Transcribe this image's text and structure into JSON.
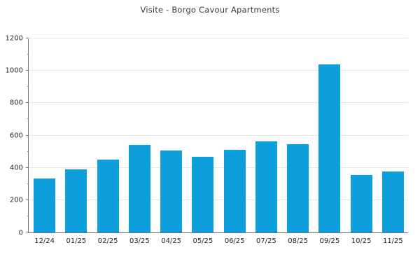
{
  "title": "Visite - Borgo Cavour Apartments",
  "colors": {
    "bar": "#0c9fdb",
    "grid": "#e6e6e6",
    "axis": "#757575",
    "title_text": "#3a3a3a",
    "tick_text": "#262626",
    "background": "#ffffff"
  },
  "chart_data": {
    "type": "bar",
    "title": "Visite - Borgo Cavour Apartments",
    "categories": [
      "12/24",
      "01/25",
      "02/25",
      "03/25",
      "04/25",
      "05/25",
      "06/25",
      "07/25",
      "08/25",
      "09/25",
      "10/25",
      "11/25"
    ],
    "values": [
      335,
      390,
      450,
      540,
      505,
      470,
      510,
      565,
      545,
      1040,
      355,
      375
    ],
    "xlabel": "",
    "ylabel": "",
    "ylim": [
      0,
      1200
    ],
    "yticks": [
      0,
      200,
      400,
      600,
      800,
      1000,
      1200
    ],
    "minor_tick_step": 100,
    "grid": "horizontal-major",
    "legend": "none",
    "bar_color": "#0c9fdb"
  }
}
